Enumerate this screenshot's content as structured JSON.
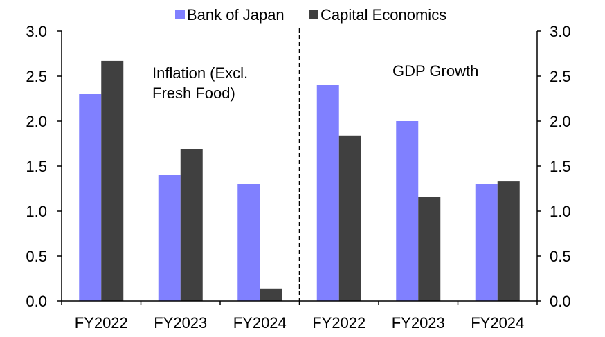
{
  "chart_data": {
    "type": "bar",
    "categories": [
      "FY2022",
      "FY2023",
      "FY2024",
      "FY2022",
      "FY2023",
      "FY2024"
    ],
    "series": [
      {
        "name": "Bank of Japan",
        "color": "#8080ff",
        "values": [
          2.3,
          1.4,
          1.3,
          2.4,
          2.0,
          1.3
        ]
      },
      {
        "name": "Capital Economics",
        "color": "#404040",
        "values": [
          2.67,
          1.69,
          0.14,
          1.84,
          1.16,
          1.33
        ]
      }
    ],
    "ylim": [
      0,
      3
    ],
    "yticks": [
      "0.0",
      "0.5",
      "1.0",
      "1.5",
      "2.0",
      "2.5",
      "3.0"
    ],
    "panels": [
      {
        "label_lines": [
          "Inflation (Excl.",
          "Fresh Food)"
        ]
      },
      {
        "label_lines": [
          "GDP Growth"
        ]
      }
    ],
    "legend_position": "top",
    "grid": false
  }
}
